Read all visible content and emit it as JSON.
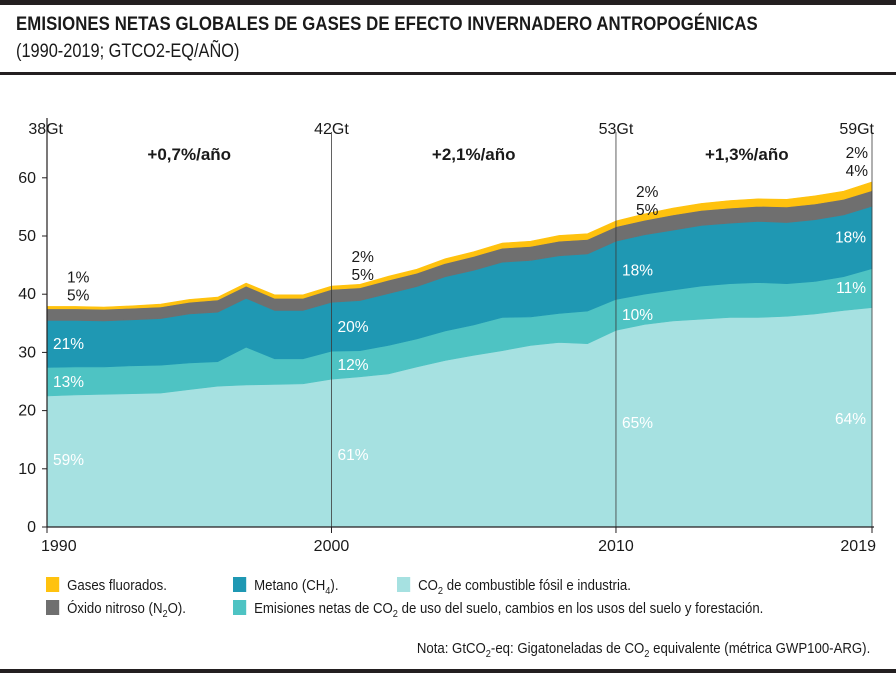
{
  "header": {
    "title": "EMISIONES NETAS GLOBALES DE GASES DE EFECTO INVERNADERO ANTROPOGÉNICAS",
    "subtitle": "(1990-2019; GTCO2-EQ/AÑO)"
  },
  "colors": {
    "fossil": "#a6e1e1",
    "land_use": "#4ec3c3",
    "methane": "#1f98b3",
    "n2o": "#6f6f6f",
    "fgas": "#ffc20e"
  },
  "chart_data": {
    "type": "area",
    "stacked": true,
    "x": [
      1990,
      1991,
      1992,
      1993,
      1994,
      1995,
      1996,
      1997,
      1998,
      1999,
      2000,
      2001,
      2002,
      2003,
      2004,
      2005,
      2006,
      2007,
      2008,
      2009,
      2010,
      2011,
      2012,
      2013,
      2014,
      2015,
      2016,
      2017,
      2018,
      2019
    ],
    "series": [
      {
        "name": "CO2 de combustible fósil e industria",
        "key": "fossil",
        "values": [
          22.5,
          22.7,
          22.8,
          22.9,
          23.0,
          23.6,
          24.2,
          24.4,
          24.5,
          24.6,
          25.4,
          25.8,
          26.3,
          27.5,
          28.6,
          29.5,
          30.3,
          31.2,
          31.7,
          31.5,
          33.8,
          34.8,
          35.4,
          35.7,
          36.0,
          36.0,
          36.2,
          36.6,
          37.2,
          37.7
        ]
      },
      {
        "name": "Emisiones netas de CO2 de uso del suelo, cambios en los usos del suelo y forestación",
        "key": "land_use",
        "values": [
          4.9,
          4.8,
          4.7,
          4.8,
          4.8,
          4.6,
          4.2,
          6.5,
          4.4,
          4.3,
          4.8,
          4.5,
          4.9,
          4.8,
          5.1,
          5.2,
          5.7,
          4.9,
          5.0,
          5.6,
          5.3,
          5.2,
          5.3,
          5.7,
          5.8,
          6.0,
          5.6,
          5.6,
          5.8,
          6.7
        ]
      },
      {
        "name": "Metano (CH4)",
        "key": "methane",
        "values": [
          8.1,
          8.0,
          7.9,
          7.9,
          8.0,
          8.4,
          8.5,
          8.4,
          8.3,
          8.3,
          8.4,
          8.6,
          8.9,
          9.0,
          9.3,
          9.4,
          9.5,
          9.7,
          9.9,
          9.8,
          10.0,
          10.2,
          10.3,
          10.4,
          10.4,
          10.5,
          10.5,
          10.6,
          10.6,
          10.7
        ]
      },
      {
        "name": "Óxido nitroso (N2O)",
        "key": "n2o",
        "values": [
          2.0,
          2.0,
          2.0,
          2.0,
          2.0,
          2.0,
          2.1,
          2.1,
          2.1,
          2.1,
          2.2,
          2.2,
          2.3,
          2.3,
          2.3,
          2.4,
          2.4,
          2.4,
          2.5,
          2.5,
          2.5,
          2.5,
          2.6,
          2.6,
          2.6,
          2.6,
          2.7,
          2.7,
          2.7,
          2.7
        ]
      },
      {
        "name": "Gases fluorados",
        "key": "fgas",
        "values": [
          0.4,
          0.4,
          0.4,
          0.4,
          0.5,
          0.5,
          0.5,
          0.5,
          0.6,
          0.6,
          0.6,
          0.6,
          0.7,
          0.7,
          0.8,
          0.8,
          0.9,
          0.9,
          1.0,
          1.0,
          1.0,
          1.1,
          1.2,
          1.2,
          1.3,
          1.3,
          1.3,
          1.4,
          1.4,
          1.5
        ]
      }
    ],
    "yticks": [
      0,
      10,
      20,
      30,
      40,
      50,
      60
    ],
    "ylim": [
      0,
      60
    ],
    "xticks": [
      "1990",
      "2000",
      "2010",
      "2019"
    ],
    "totals_labels": [
      {
        "year": 1990,
        "label": "38Gt"
      },
      {
        "year": 2000,
        "label": "42Gt"
      },
      {
        "year": 2010,
        "label": "53Gt"
      },
      {
        "year": 2019,
        "label": "59Gt"
      }
    ],
    "growth_labels": [
      {
        "label": "+0,7%/año"
      },
      {
        "label": "+2,1%/año"
      },
      {
        "label": "+1,3%/año"
      }
    ],
    "share_labels": [
      {
        "year": 1990,
        "fossil": "59%",
        "land_use": "13%",
        "methane": "21%",
        "n2o": "5%",
        "fgas": "1%"
      },
      {
        "year": 2000,
        "fossil": "61%",
        "land_use": "12%",
        "methane": "20%",
        "n2o": "5%",
        "fgas": "2%"
      },
      {
        "year": 2010,
        "fossil": "65%",
        "land_use": "10%",
        "methane": "18%",
        "n2o": "5%",
        "fgas": "2%"
      },
      {
        "year": 2019,
        "fossil": "64%",
        "land_use": "11%",
        "methane": "18%",
        "n2o": "4%",
        "fgas": "2%"
      }
    ]
  },
  "legend": {
    "fgas": "Gases fluorados.",
    "n2o_pre": "Óxido nitroso (N",
    "n2o_sub": "2",
    "n2o_post": "O).",
    "methane_pre": "Metano (CH",
    "methane_sub": "4",
    "methane_post": ").",
    "landuse_pre": "Emisiones netas de CO",
    "landuse_sub": "2",
    "landuse_post": " de uso del suelo, cambios en los usos del suelo y forestación.",
    "fossil_pre": "CO",
    "fossil_sub": "2",
    "fossil_post": " de combustible fósil e industria."
  },
  "note": {
    "p1": "Nota: GtCO",
    "s1": "2",
    "p2": "-eq: Gigatoneladas de CO",
    "s2": "2",
    "p3": " equivalente (métrica GWP100-ARG)."
  }
}
